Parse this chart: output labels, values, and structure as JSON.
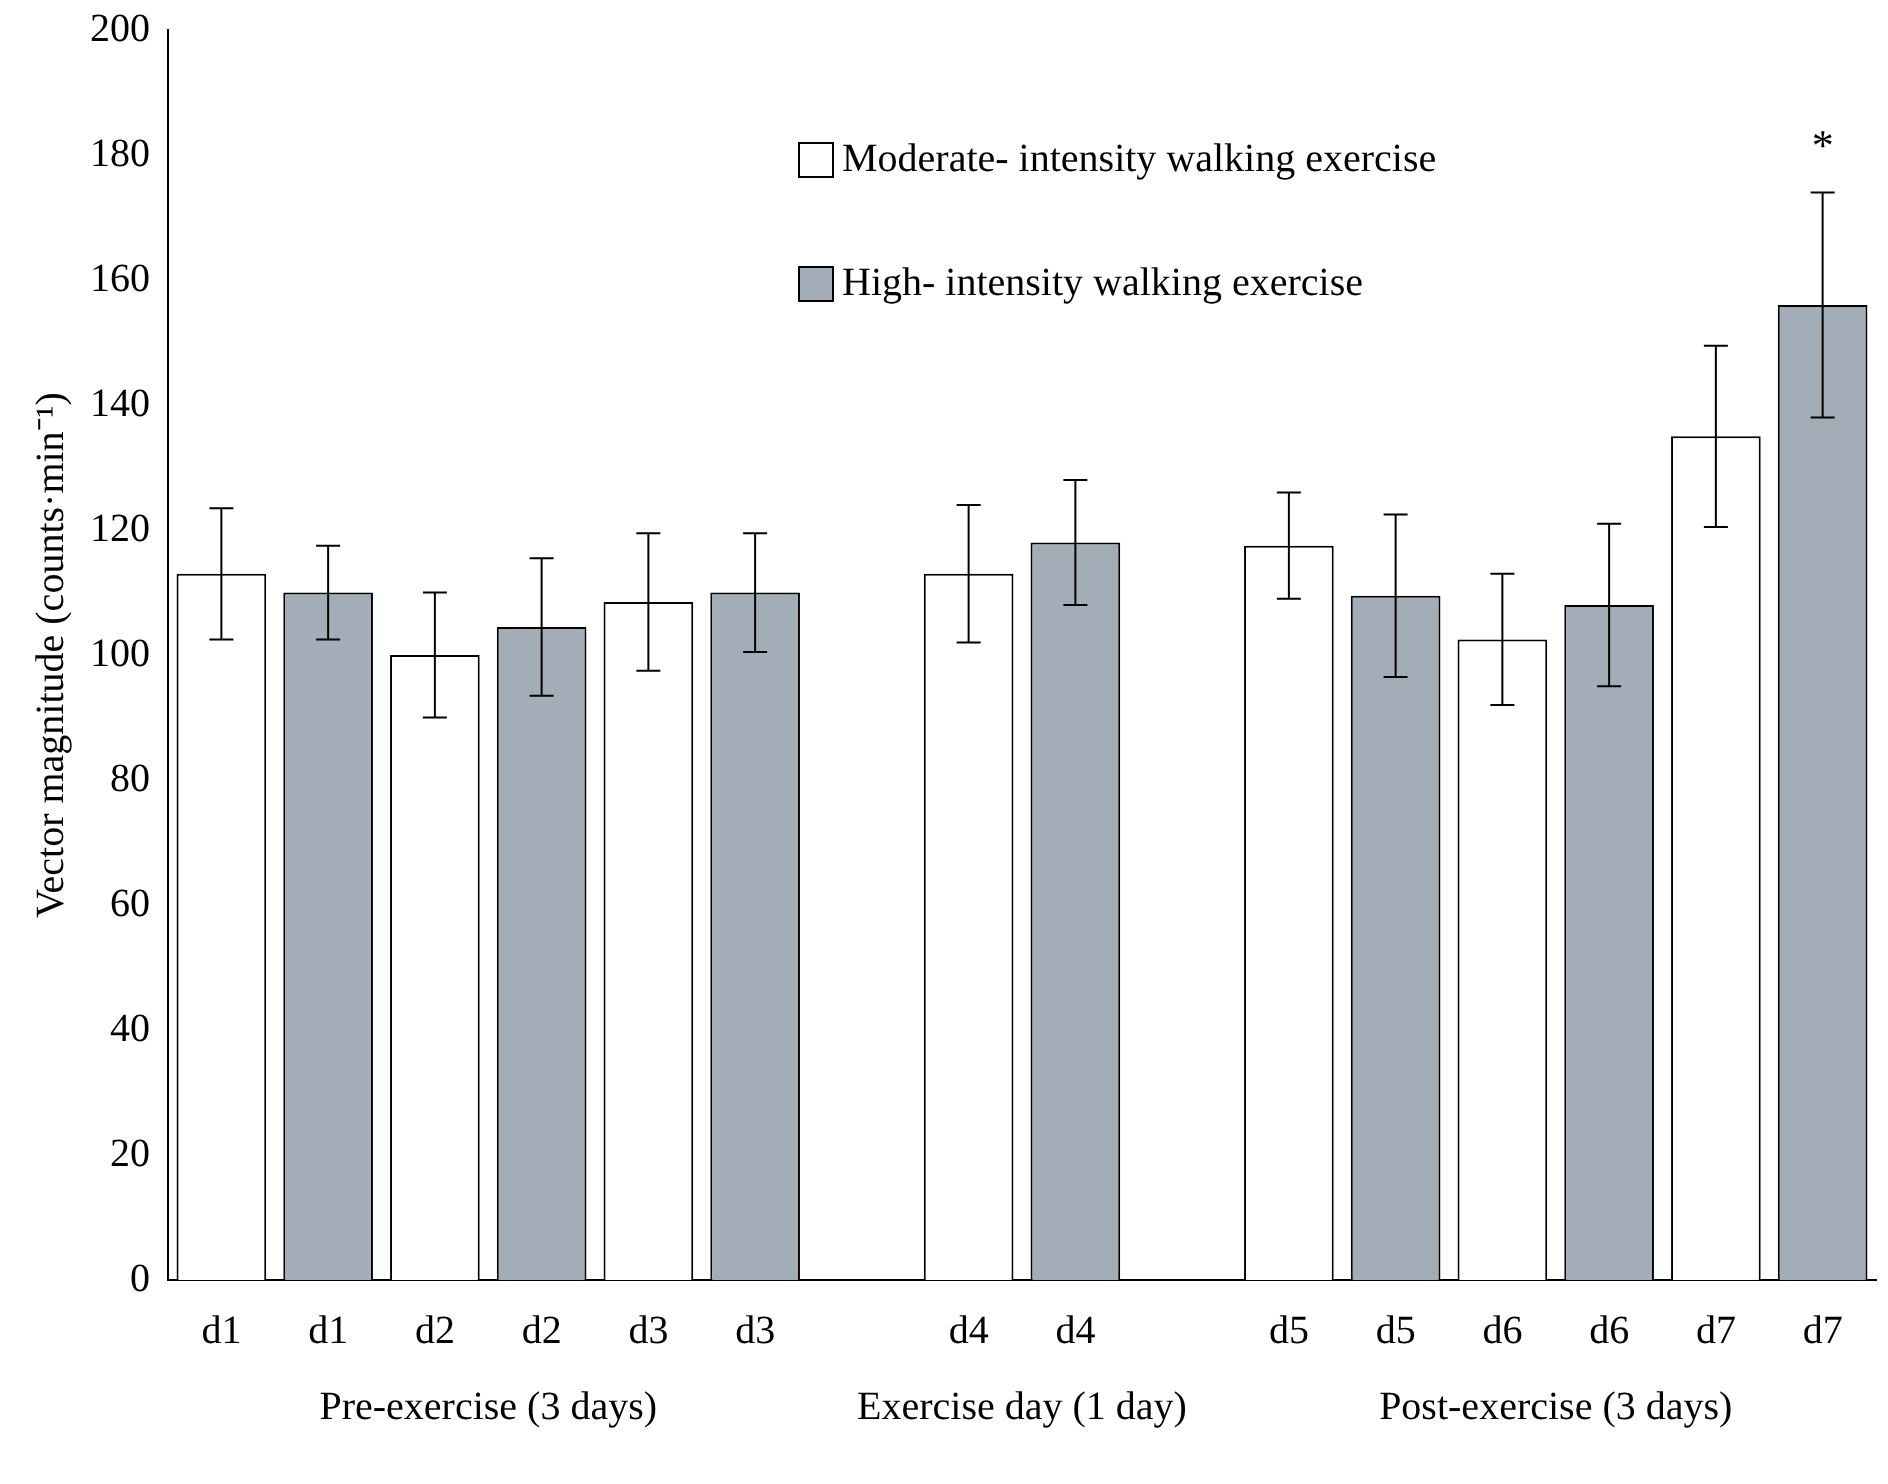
{
  "chart_data": {
    "type": "bar",
    "stacked": true,
    "ylabel": "Vector magnitude (counts·min⁻¹)",
    "categories": [
      "d1",
      "d1",
      "d2",
      "d2",
      "d3",
      "d3",
      null,
      "d4",
      "d4",
      null,
      "d5",
      "d5",
      "d6",
      "d6",
      "d7",
      "d7"
    ],
    "series": [
      {
        "name": "Moderate- intensity walking exercise",
        "color": "#ffffff",
        "values": [
          113,
          null,
          100,
          null,
          108.5,
          null,
          null,
          113,
          null,
          null,
          117.5,
          null,
          102.5,
          null,
          135,
          null
        ],
        "errors": [
          10.5,
          null,
          10,
          null,
          11,
          null,
          null,
          11,
          null,
          null,
          8.5,
          null,
          10.5,
          null,
          14.5,
          null
        ]
      },
      {
        "name": "High- intensity walking exercise",
        "color": "#a3adb8",
        "values": [
          null,
          110,
          null,
          104.5,
          null,
          110,
          null,
          null,
          118,
          null,
          null,
          109.5,
          null,
          108,
          null,
          156
        ],
        "errors": [
          null,
          7.5,
          null,
          11,
          null,
          9.5,
          null,
          null,
          10,
          null,
          null,
          13,
          null,
          13,
          null,
          18
        ]
      }
    ],
    "ylim": [
      0,
      200
    ],
    "yticks": [
      0,
      20,
      40,
      60,
      80,
      100,
      120,
      140,
      160,
      180,
      200
    ],
    "grid": false,
    "legend": "top",
    "annotations": [
      "Pre-exercise (3 days)",
      "Exercise day (1 day)",
      "Post-exercise (3 days)",
      "*"
    ]
  }
}
